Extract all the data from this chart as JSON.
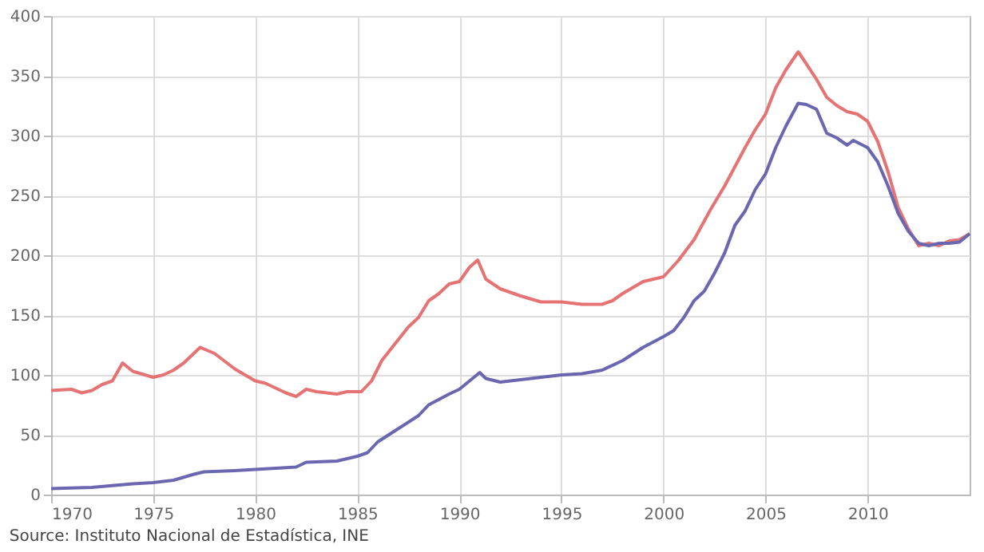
{
  "chart_data": {
    "type": "line",
    "xlim": [
      1970,
      2015
    ],
    "xticks": [
      1970,
      1975,
      1980,
      1985,
      1990,
      1995,
      2000,
      2005,
      2010
    ],
    "ylim": [
      0,
      400
    ],
    "yticks": [
      0,
      50,
      100,
      150,
      200,
      250,
      300,
      350,
      400
    ],
    "grid": true,
    "legend": false,
    "annotations": [
      "Source: Instituto Nacional de Estadística, INE"
    ],
    "series": [
      {
        "color": "#e57373",
        "x": [
          1970,
          1971,
          1971.5,
          1972,
          1972.5,
          1973,
          1973.5,
          1974,
          1975,
          1975.5,
          1976,
          1976.5,
          1977.3,
          1978,
          1979,
          1980,
          1980.5,
          1981.5,
          1982,
          1982.5,
          1983,
          1984,
          1984.5,
          1985.2,
          1985.7,
          1986.2,
          1986.8,
          1987.5,
          1988,
          1988.5,
          1989,
          1989.5,
          1990,
          1990.5,
          1990.9,
          1991.3,
          1992,
          1993,
          1994,
          1995,
          1996,
          1997,
          1997.5,
          1998,
          1999,
          2000,
          2000.7,
          2001.5,
          2002.3,
          2003,
          2004,
          2004.5,
          2005,
          2005.5,
          2006,
          2006.6,
          2007,
          2007.5,
          2008,
          2008.5,
          2009,
          2009.5,
          2010,
          2010.5,
          2011,
          2011.5,
          2012,
          2012.5,
          2013,
          2013.5,
          2014,
          2014.5,
          2015
        ],
        "values": [
          87,
          88,
          85,
          87,
          92,
          95,
          110,
          103,
          98,
          100,
          104,
          110,
          123,
          118,
          105,
          95,
          93,
          85,
          82,
          88,
          86,
          84,
          86,
          86,
          95,
          112,
          125,
          140,
          148,
          162,
          168,
          176,
          178,
          190,
          196,
          180,
          172,
          166,
          161,
          161,
          159,
          159,
          162,
          168,
          178,
          182,
          195,
          213,
          238,
          258,
          290,
          305,
          318,
          340,
          355,
          370,
          360,
          347,
          332,
          325,
          320,
          318,
          312,
          295,
          270,
          240,
          222,
          208,
          210,
          208,
          212,
          213,
          218
        ]
      },
      {
        "color": "#6b66b0",
        "x": [
          1970,
          1972,
          1974,
          1975,
          1976,
          1977,
          1977.5,
          1979,
          1980,
          1981,
          1982,
          1982.5,
          1984,
          1985,
          1985.5,
          1986,
          1987,
          1988,
          1988.5,
          1989.5,
          1990,
          1990.5,
          1991,
          1991.3,
          1992,
          1993,
          1994,
          1995,
          1996,
          1997,
          1998,
          1999,
          2000,
          2000.5,
          2001,
          2001.5,
          2002,
          2002.5,
          2003,
          2003.5,
          2004,
          2004.5,
          2005,
          2005.5,
          2006,
          2006.6,
          2007,
          2007.5,
          2008,
          2008.5,
          2009,
          2009.3,
          2010,
          2010.5,
          2011,
          2011.5,
          2012,
          2012.5,
          2013,
          2013.5,
          2014,
          2014.5,
          2015
        ],
        "values": [
          5,
          6,
          9,
          10,
          12,
          17,
          19,
          20,
          21,
          22,
          23,
          27,
          28,
          32,
          35,
          44,
          55,
          66,
          75,
          84,
          88,
          95,
          102,
          97,
          94,
          96,
          98,
          100,
          101,
          104,
          112,
          123,
          132,
          137,
          148,
          162,
          170,
          185,
          202,
          225,
          237,
          255,
          268,
          290,
          308,
          327,
          326,
          322,
          302,
          298,
          292,
          296,
          290,
          278,
          258,
          235,
          220,
          210,
          208,
          210,
          210,
          211,
          218
        ]
      }
    ]
  }
}
